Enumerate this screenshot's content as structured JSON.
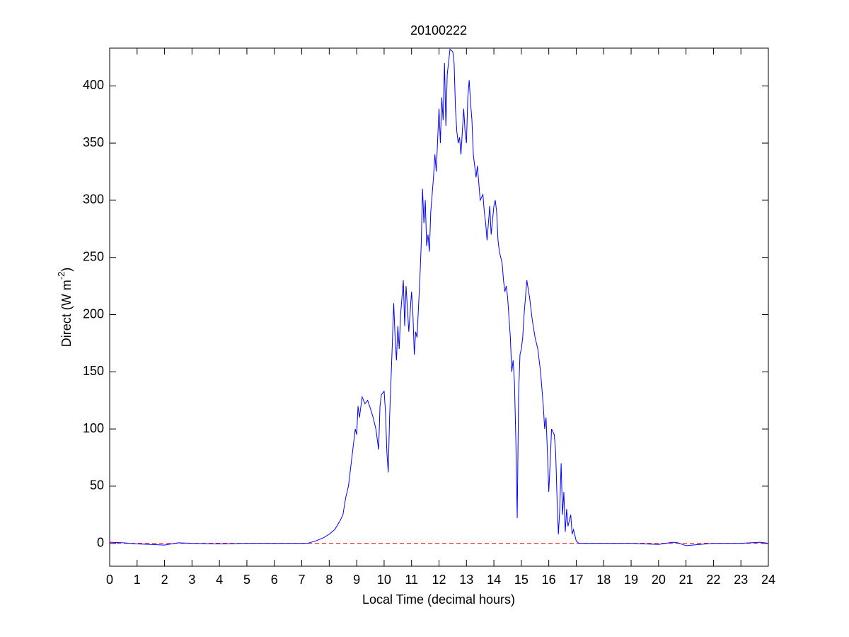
{
  "chart_data": {
    "type": "line",
    "title": "20100222",
    "xlabel": "Local Time (decimal hours)",
    "ylabel": {
      "text": "Direct (W m",
      "superscript": "-2",
      "close": ")"
    },
    "xlim": [
      0,
      24
    ],
    "xticks": [
      0,
      1,
      2,
      3,
      4,
      5,
      6,
      7,
      8,
      9,
      10,
      11,
      12,
      13,
      14,
      15,
      16,
      17,
      18,
      19,
      20,
      21,
      22,
      23,
      24
    ],
    "ylim": [
      -20,
      433
    ],
    "yticks": [
      0,
      50,
      100,
      150,
      200,
      250,
      300,
      350,
      400
    ],
    "grid": false,
    "reference_line": {
      "value": 0,
      "color": "#ff0000",
      "style": "dashed"
    },
    "series": [
      {
        "color": "#0000ff",
        "x": [
          0,
          0.5,
          1,
          1.5,
          2,
          2.5,
          3,
          4,
          5,
          6,
          7,
          7.2,
          7.5,
          7.8,
          8.0,
          8.2,
          8.4,
          8.5,
          8.6,
          8.7,
          8.8,
          8.9,
          8.95,
          9.0,
          9.05,
          9.1,
          9.2,
          9.3,
          9.4,
          9.5,
          9.6,
          9.7,
          9.8,
          9.85,
          9.9,
          10.0,
          10.05,
          10.1,
          10.15,
          10.2,
          10.3,
          10.35,
          10.4,
          10.45,
          10.5,
          10.55,
          10.6,
          10.7,
          10.75,
          10.8,
          10.9,
          11.0,
          11.05,
          11.1,
          11.15,
          11.2,
          11.3,
          11.35,
          11.4,
          11.45,
          11.5,
          11.55,
          11.6,
          11.65,
          11.7,
          11.8,
          11.85,
          11.9,
          12.0,
          12.05,
          12.1,
          12.15,
          12.2,
          12.25,
          12.3,
          12.4,
          12.5,
          12.55,
          12.6,
          12.65,
          12.7,
          12.75,
          12.8,
          12.9,
          12.95,
          13.0,
          13.05,
          13.1,
          13.15,
          13.2,
          13.25,
          13.3,
          13.35,
          13.4,
          13.5,
          13.6,
          13.65,
          13.7,
          13.75,
          13.8,
          13.85,
          13.9,
          14.0,
          14.05,
          14.1,
          14.15,
          14.2,
          14.3,
          14.35,
          14.4,
          14.45,
          14.5,
          14.6,
          14.65,
          14.7,
          14.75,
          14.8,
          14.85,
          14.9,
          14.95,
          15.0,
          15.05,
          15.1,
          15.15,
          15.2,
          15.3,
          15.4,
          15.5,
          15.6,
          15.7,
          15.8,
          15.85,
          15.9,
          15.95,
          16.0,
          16.05,
          16.1,
          16.2,
          16.25,
          16.3,
          16.35,
          16.4,
          16.45,
          16.5,
          16.55,
          16.6,
          16.65,
          16.7,
          16.8,
          16.85,
          16.9,
          17.0,
          17.1,
          17.5,
          18,
          19,
          19.5,
          20,
          20.5,
          20.7,
          21,
          21.5,
          22,
          23,
          23.7,
          24
        ],
        "values": [
          1,
          0.5,
          -0.5,
          -1,
          -1.5,
          0.5,
          0,
          -0.5,
          0,
          0,
          0,
          0,
          2,
          5,
          8,
          12,
          20,
          25,
          40,
          50,
          70,
          90,
          100,
          95,
          120,
          110,
          128,
          122,
          125,
          118,
          110,
          100,
          82,
          120,
          130,
          133,
          115,
          80,
          62,
          110,
          175,
          210,
          180,
          160,
          190,
          170,
          200,
          230,
          190,
          225,
          185,
          220,
          200,
          165,
          185,
          180,
          230,
          260,
          310,
          280,
          300,
          260,
          270,
          255,
          290,
          320,
          340,
          325,
          380,
          350,
          390,
          370,
          420,
          365,
          410,
          432,
          430,
          420,
          380,
          360,
          350,
          355,
          340,
          380,
          360,
          350,
          390,
          405,
          385,
          370,
          340,
          330,
          320,
          330,
          300,
          305,
          290,
          280,
          265,
          280,
          295,
          270,
          295,
          300,
          290,
          265,
          255,
          245,
          230,
          220,
          225,
          215,
          180,
          150,
          160,
          140,
          90,
          22,
          130,
          165,
          170,
          180,
          200,
          215,
          230,
          215,
          195,
          180,
          170,
          150,
          120,
          100,
          110,
          80,
          45,
          70,
          100,
          95,
          80,
          40,
          8,
          30,
          70,
          25,
          45,
          10,
          30,
          15,
          25,
          8,
          12,
          2,
          0,
          0,
          0,
          0,
          -0.5,
          -1,
          1,
          0.5,
          -2,
          -1,
          0,
          0,
          1,
          0
        ]
      }
    ]
  }
}
